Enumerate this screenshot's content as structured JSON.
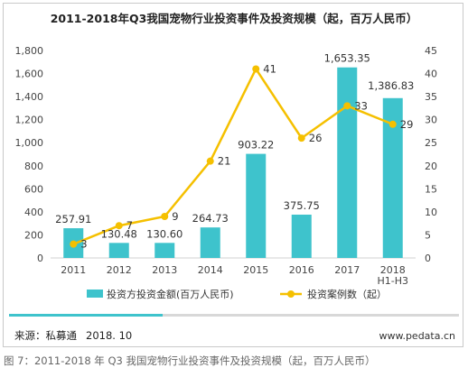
{
  "title": "2011-2018年Q3我国宠物行业投资事件及投资规模（起，百万人民币）",
  "source_label": "来源：私募通",
  "source_date": "2018. 10",
  "website": "www.pedata.cn",
  "caption": "图 7：2011-2018 年 Q3 我国宠物行业投资事件及投资规模（起，百万人民币）",
  "colors": {
    "bar": "#3ec3cc",
    "line": "#f5c000",
    "stripe": "#3ec3cc"
  },
  "chart_data": {
    "type": "bar+line",
    "categories": [
      "2011",
      "2012",
      "2013",
      "2014",
      "2015",
      "2016",
      "2017",
      "2018\nH1-H3"
    ],
    "series": [
      {
        "name": "投资方投资金额(百万人民币)",
        "type": "bar",
        "axis": "left",
        "values": [
          257.91,
          130.48,
          130.6,
          264.73,
          903.22,
          375.75,
          1653.35,
          1386.83
        ],
        "labels": [
          "257.91",
          "130.48",
          "130.60",
          "264.73",
          "903.22",
          "375.75",
          "1,653.35",
          "1,386.83"
        ]
      },
      {
        "name": "投资案例数（起）",
        "type": "line",
        "axis": "right",
        "values": [
          3,
          7,
          9,
          21,
          41,
          26,
          33,
          29
        ],
        "labels": [
          "3",
          "7",
          "9",
          "21",
          "41",
          "26",
          "33",
          "29"
        ]
      }
    ],
    "y_left": {
      "min": 0,
      "max": 1800,
      "ticks": [
        "0",
        "200",
        "400",
        "600",
        "800",
        "1,000",
        "1,200",
        "1,400",
        "1,600",
        "1,800"
      ]
    },
    "y_right": {
      "min": 0,
      "max": 45,
      "ticks": [
        "0",
        "5",
        "10",
        "15",
        "20",
        "25",
        "30",
        "35",
        "40",
        "45"
      ]
    },
    "grid": false,
    "legend": "bottom"
  }
}
